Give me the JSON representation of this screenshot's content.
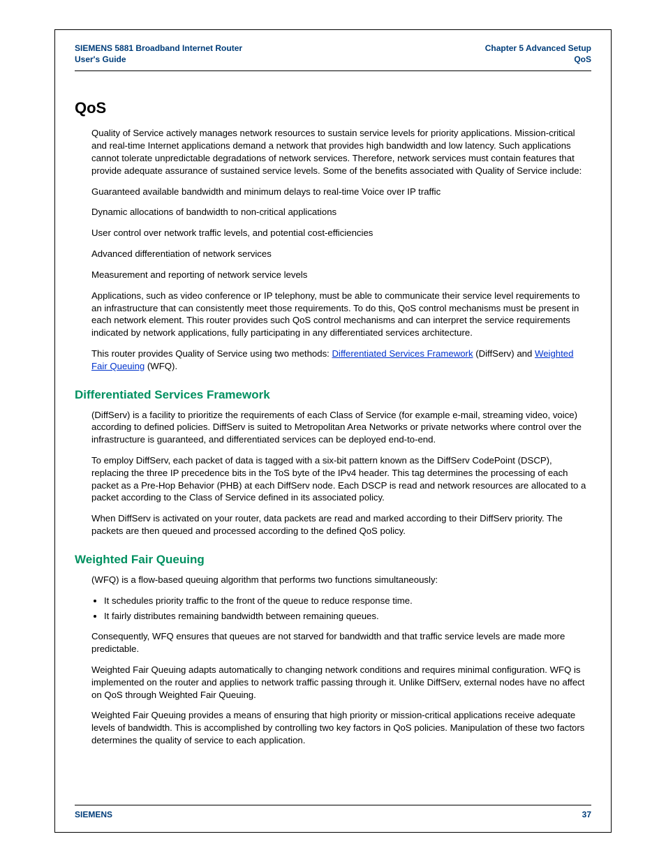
{
  "header": {
    "left_line1": "SIEMENS 5881 Broadband Internet Router",
    "left_line2": "User's Guide",
    "right_line1": "Chapter 5  Advanced Setup",
    "right_line2": "QoS"
  },
  "title": "QoS",
  "intro_p1": "Quality of Service actively manages network resources to sustain service levels for priority applications. Mission-critical and real-time Internet applications demand a network that provides high bandwidth and low latency. Such applications cannot tolerate unpredictable degradations of network services. Therefore, network services must contain features that provide adequate assurance of sustained service levels. Some of the benefits associated with Quality of Service include:",
  "benefit1": "Guaranteed available bandwidth and minimum delays to real-time Voice over IP traffic",
  "benefit2": "Dynamic allocations of bandwidth to non-critical applications",
  "benefit3": "User control over network traffic levels, and potential cost-efficiencies",
  "benefit4": "Advanced differentiation of network services",
  "benefit5": "Measurement and reporting of network service levels",
  "intro_p2": "Applications, such as video conference or IP telephony, must be able to communicate their service level requirements to an infrastructure that can consistently meet those requirements. To do this, QoS control mechanisms must be present in each network element. This router provides such QoS control mechanisms and can interpret the service requirements indicated by network applications, fully participating in any differentiated services architecture.",
  "intro_p3_before": "This router provides Quality of Service using two methods: ",
  "intro_p3_link1": "Differentiated Services Framework",
  "intro_p3_mid": " (DiffServ) and ",
  "intro_p3_link2": "Weighted Fair Queuing",
  "intro_p3_after": " (WFQ).",
  "dsf": {
    "heading": "Differentiated Services Framework",
    "p1": "(DiffServ) is a facility to prioritize the requirements of each Class of Service (for example e-mail, streaming video, voice) according to defined policies. DiffServ is suited to Metropolitan Area Networks or private networks where control over the infrastructure is guaranteed, and differentiated services can be deployed end-to-end.",
    "p2": "To employ DiffServ, each packet of data is tagged with a six-bit pattern known as the DiffServ CodePoint (DSCP), replacing the three IP precedence bits in the ToS byte of the IPv4 header. This tag determines the processing of each packet as a Pre-Hop Behavior (PHB) at each DiffServ node. Each DSCP is read and network resources are allocated to a packet according to the Class of Service defined in its associated policy.",
    "p3": "When DiffServ is activated on your router, data packets are read and marked according to their DiffServ priority. The packets are then queued and processed according to the defined QoS policy."
  },
  "wfq": {
    "heading": "Weighted Fair Queuing",
    "p1": "(WFQ) is a flow-based queuing algorithm that performs two functions simultaneously:",
    "li1": "It schedules priority traffic to the front of the queue to reduce response time.",
    "li2": "It fairly distributes remaining bandwidth between remaining queues.",
    "p2": "Consequently, WFQ ensures that queues are not starved for bandwidth and that traffic service levels are made more predictable.",
    "p3": "Weighted Fair Queuing adapts automatically to changing network conditions and requires minimal configuration. WFQ is implemented on the router and applies to network traffic passing through it. Unlike DiffServ, external nodes have no affect on QoS through Weighted Fair Queuing.",
    "p4": "Weighted Fair Queuing provides a means of ensuring that high priority or mission-critical applications receive adequate levels of bandwidth. This is accomplished by controlling two key factors in QoS policies. Manipulation of these two factors determines the quality of service to each application."
  },
  "footer": {
    "brand": "SIEMENS",
    "page": "37"
  }
}
